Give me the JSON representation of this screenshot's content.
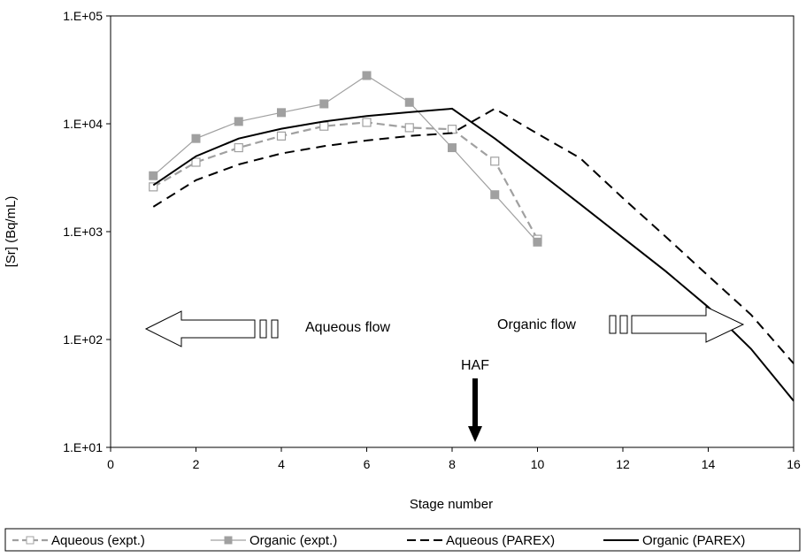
{
  "chart_data": {
    "type": "line",
    "title": "",
    "xlabel": "Stage number",
    "ylabel": "[Sr] (Bq/mL)",
    "xlim": [
      0,
      16
    ],
    "ylim": [
      10,
      100000
    ],
    "y_scale": "log",
    "x_ticks": [
      "0",
      "2",
      "4",
      "6",
      "8",
      "10",
      "12",
      "14",
      "16"
    ],
    "y_ticks": [
      "1.E+01",
      "1.E+02",
      "1.E+03",
      "1.E+04",
      "1.E+05"
    ],
    "grid": false,
    "legend_position": "bottom",
    "series": [
      {
        "name": "Aqueous (expt.)",
        "style": "gray dashed, open square markers",
        "color": "#a0a0a0",
        "x": [
          1,
          2,
          3,
          4,
          5,
          6,
          7,
          8,
          9,
          10
        ],
        "y": [
          2600,
          4400,
          6000,
          7700,
          9500,
          10300,
          9200,
          8900,
          4500,
          850
        ]
      },
      {
        "name": "Organic (expt.)",
        "style": "gray solid thin, filled square markers",
        "color": "#a0a0a0",
        "x": [
          1,
          2,
          3,
          4,
          5,
          6,
          7,
          8,
          9,
          10
        ],
        "y": [
          3300,
          7300,
          10500,
          12700,
          15300,
          28000,
          15800,
          6000,
          2200,
          800
        ]
      },
      {
        "name": "Aqueous (PAREX)",
        "style": "black dashed",
        "color": "#000000",
        "x": [
          1,
          2,
          3,
          4,
          5,
          6,
          7,
          8,
          9,
          10,
          11,
          12,
          13,
          14,
          15,
          16
        ],
        "y": [
          1700,
          3000,
          4200,
          5300,
          6200,
          7000,
          7700,
          8200,
          13800,
          8100,
          4800,
          2050,
          900,
          390,
          170,
          60
        ]
      },
      {
        "name": "Organic (PAREX)",
        "style": "black solid",
        "color": "#000000",
        "x": [
          1,
          2,
          3,
          4,
          5,
          6,
          7,
          8,
          9,
          10,
          11,
          12,
          13,
          14,
          15,
          16
        ],
        "y": [
          2700,
          5000,
          7300,
          9000,
          10500,
          11800,
          12800,
          13800,
          7300,
          3650,
          1800,
          880,
          430,
          200,
          82,
          27
        ]
      }
    ],
    "annotations": {
      "aqueous_flow": "Aqueous flow",
      "organic_flow": "Organic flow",
      "feed": "HAF"
    }
  }
}
